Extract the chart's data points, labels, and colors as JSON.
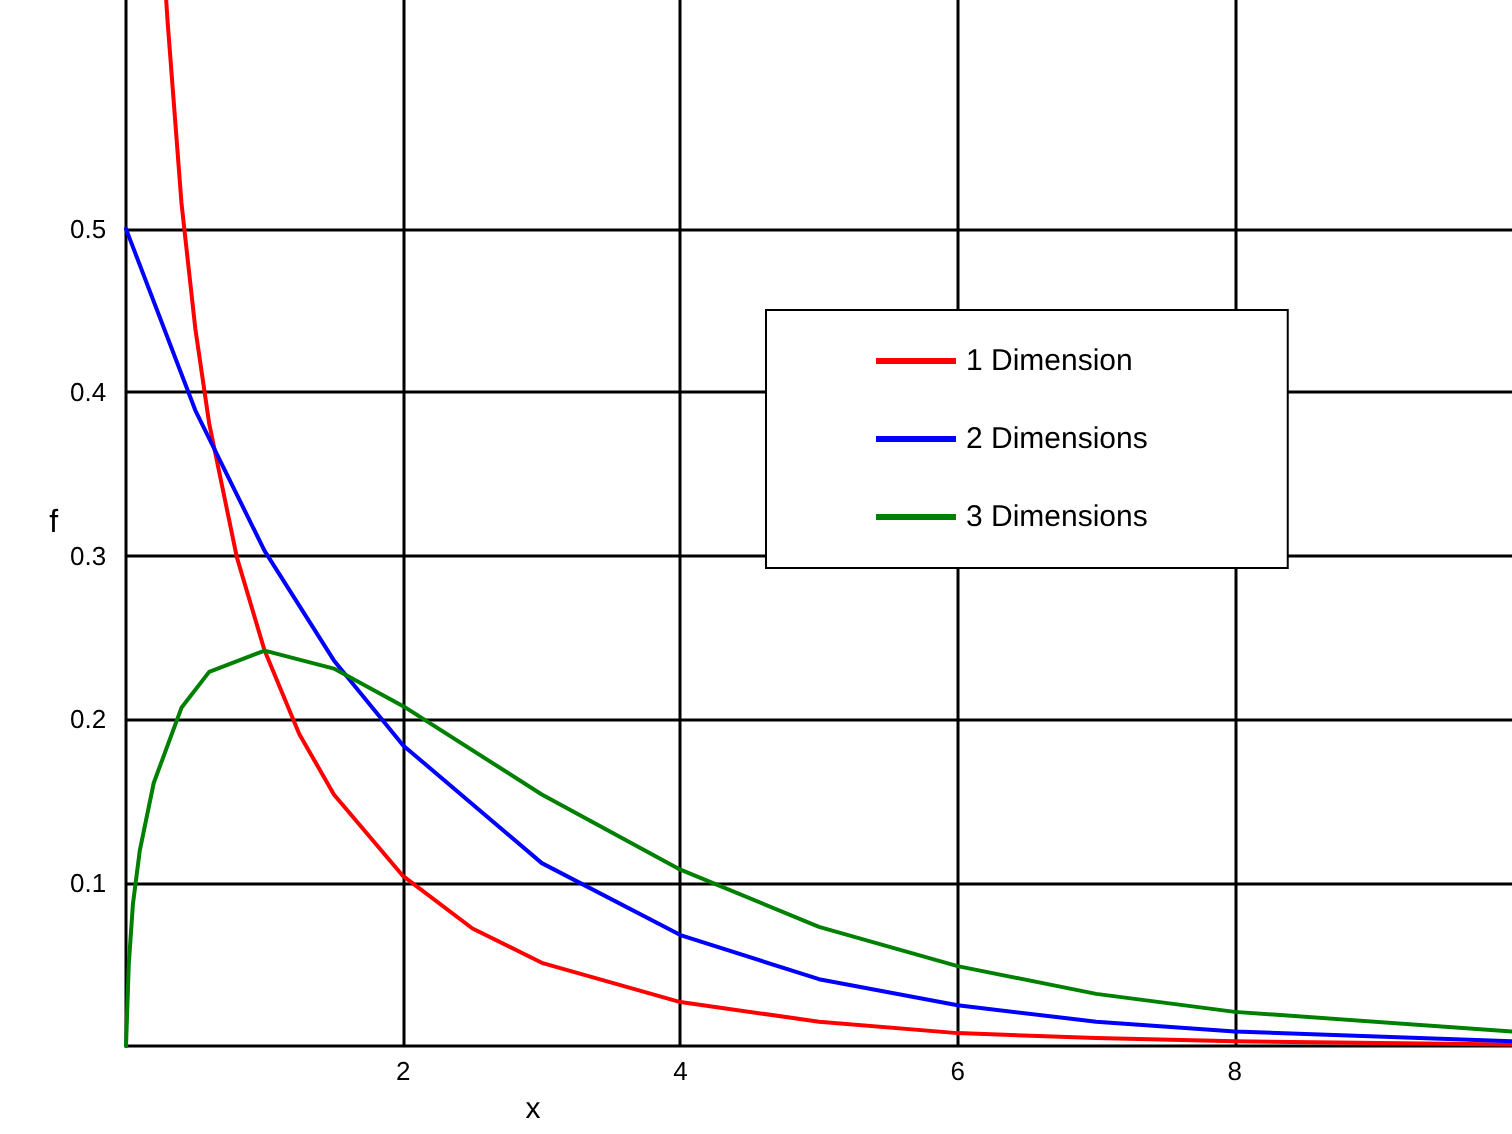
{
  "chart_data": {
    "type": "line",
    "xlabel": "x",
    "ylabel": "f",
    "xlim": [
      0,
      10
    ],
    "ylim": [
      0,
      0.64
    ],
    "xticks": [
      2,
      4,
      6,
      8
    ],
    "yticks": [
      0.1,
      0.2,
      0.3,
      0.4,
      0.5
    ],
    "grid": true,
    "legend": "right",
    "marker": "none",
    "line_style": "solid",
    "series": [
      {
        "name": "1 Dimension",
        "color": "#ff0000",
        "x": [
          0.29,
          0.3,
          0.4,
          0.5,
          0.6,
          0.8,
          1,
          1.25,
          1.5,
          2,
          2.5,
          3,
          4,
          5,
          6,
          7,
          8,
          10
        ],
        "values": [
          0.64,
          0.627,
          0.516,
          0.439,
          0.381,
          0.299,
          0.242,
          0.191,
          0.154,
          0.104,
          0.072,
          0.051,
          0.027,
          0.015,
          0.008,
          0.005,
          0.003,
          0.001
        ]
      },
      {
        "name": "2 Dimensions",
        "color": "#0000ff",
        "x": [
          0,
          0.5,
          1,
          1.5,
          2,
          3,
          4,
          5,
          6,
          7,
          8,
          10
        ],
        "values": [
          0.5,
          0.389,
          0.303,
          0.236,
          0.184,
          0.112,
          0.068,
          0.041,
          0.025,
          0.015,
          0.009,
          0.003
        ]
      },
      {
        "name": "3 Dimensions",
        "color": "#008000",
        "x": [
          0,
          0.02,
          0.05,
          0.1,
          0.2,
          0.4,
          0.6,
          1,
          1.5,
          2,
          3,
          4,
          5,
          6,
          7,
          8,
          10
        ],
        "values": [
          0,
          0.05,
          0.087,
          0.12,
          0.161,
          0.207,
          0.229,
          0.242,
          0.231,
          0.208,
          0.154,
          0.108,
          0.073,
          0.049,
          0.032,
          0.021,
          0.009
        ]
      }
    ]
  }
}
